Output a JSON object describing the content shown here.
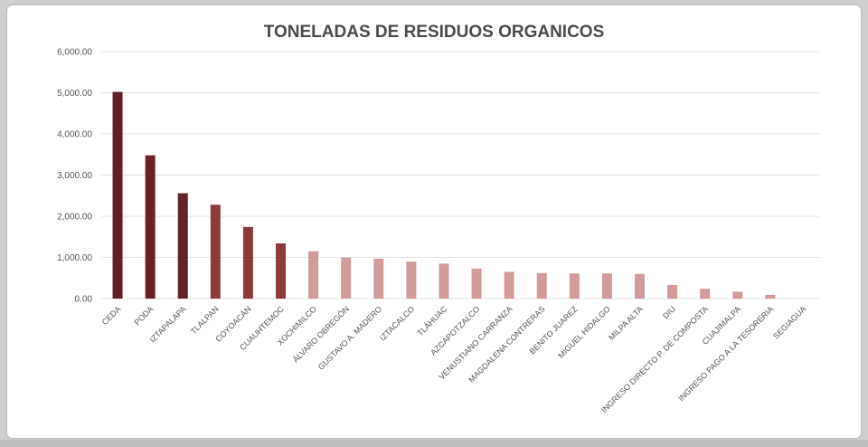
{
  "chart_data": {
    "type": "bar",
    "title": "TONELADAS DE RESIDUOS ORGANICOS",
    "xlabel": "",
    "ylabel": "",
    "ylim": [
      0,
      6000
    ],
    "yticks": [
      "0.00",
      "1,000.00",
      "2,000.00",
      "3,000.00",
      "4,000.00",
      "5,000.00",
      "6,000.00"
    ],
    "grid": true,
    "categories": [
      "CEDA",
      "PODA",
      "IZTAPALAPA",
      "TLALPAN",
      "COYOACÁN",
      "CUAUHTEMOC",
      "XOCHIMILCO",
      "ÁLVARO OBREGÓN",
      "GUSTAVO A. MADERO",
      "IZTACALCO",
      "TLÁHUAC",
      "AZCAPOTZALCO",
      "VENUSTIANO CARRANZA",
      "MAGDALENA CONTRERAS",
      "BENITO JUAREZ",
      "MIGUEL HIDALGO",
      "MILPA ALTA",
      "DIU",
      "INGRESO DIRECTO P. DE COMPOSTA",
      "CUAJIMALPA",
      "INGRESO PAGO A LA TESORERIA",
      "SEGIAGUA"
    ],
    "values": [
      5020,
      3480,
      2560,
      2280,
      1740,
      1340,
      1150,
      1000,
      970,
      900,
      850,
      730,
      650,
      620,
      610,
      610,
      600,
      330,
      240,
      170,
      90,
      0
    ],
    "bar_colors": [
      "#5e2024",
      "#6a2126",
      "#5e2426",
      "#8c3a3c",
      "#8c3a3c",
      "#8c3a3c",
      "#d19b9b",
      "#d19b9b",
      "#d19b9b",
      "#d19b9b",
      "#d19b9b",
      "#d19b9b",
      "#d19b9b",
      "#d19b9b",
      "#d19b9b",
      "#d19b9b",
      "#d19b9b",
      "#d19b9b",
      "#d19b9b",
      "#d19b9b",
      "#d19b9b",
      "#d19b9b"
    ]
  }
}
